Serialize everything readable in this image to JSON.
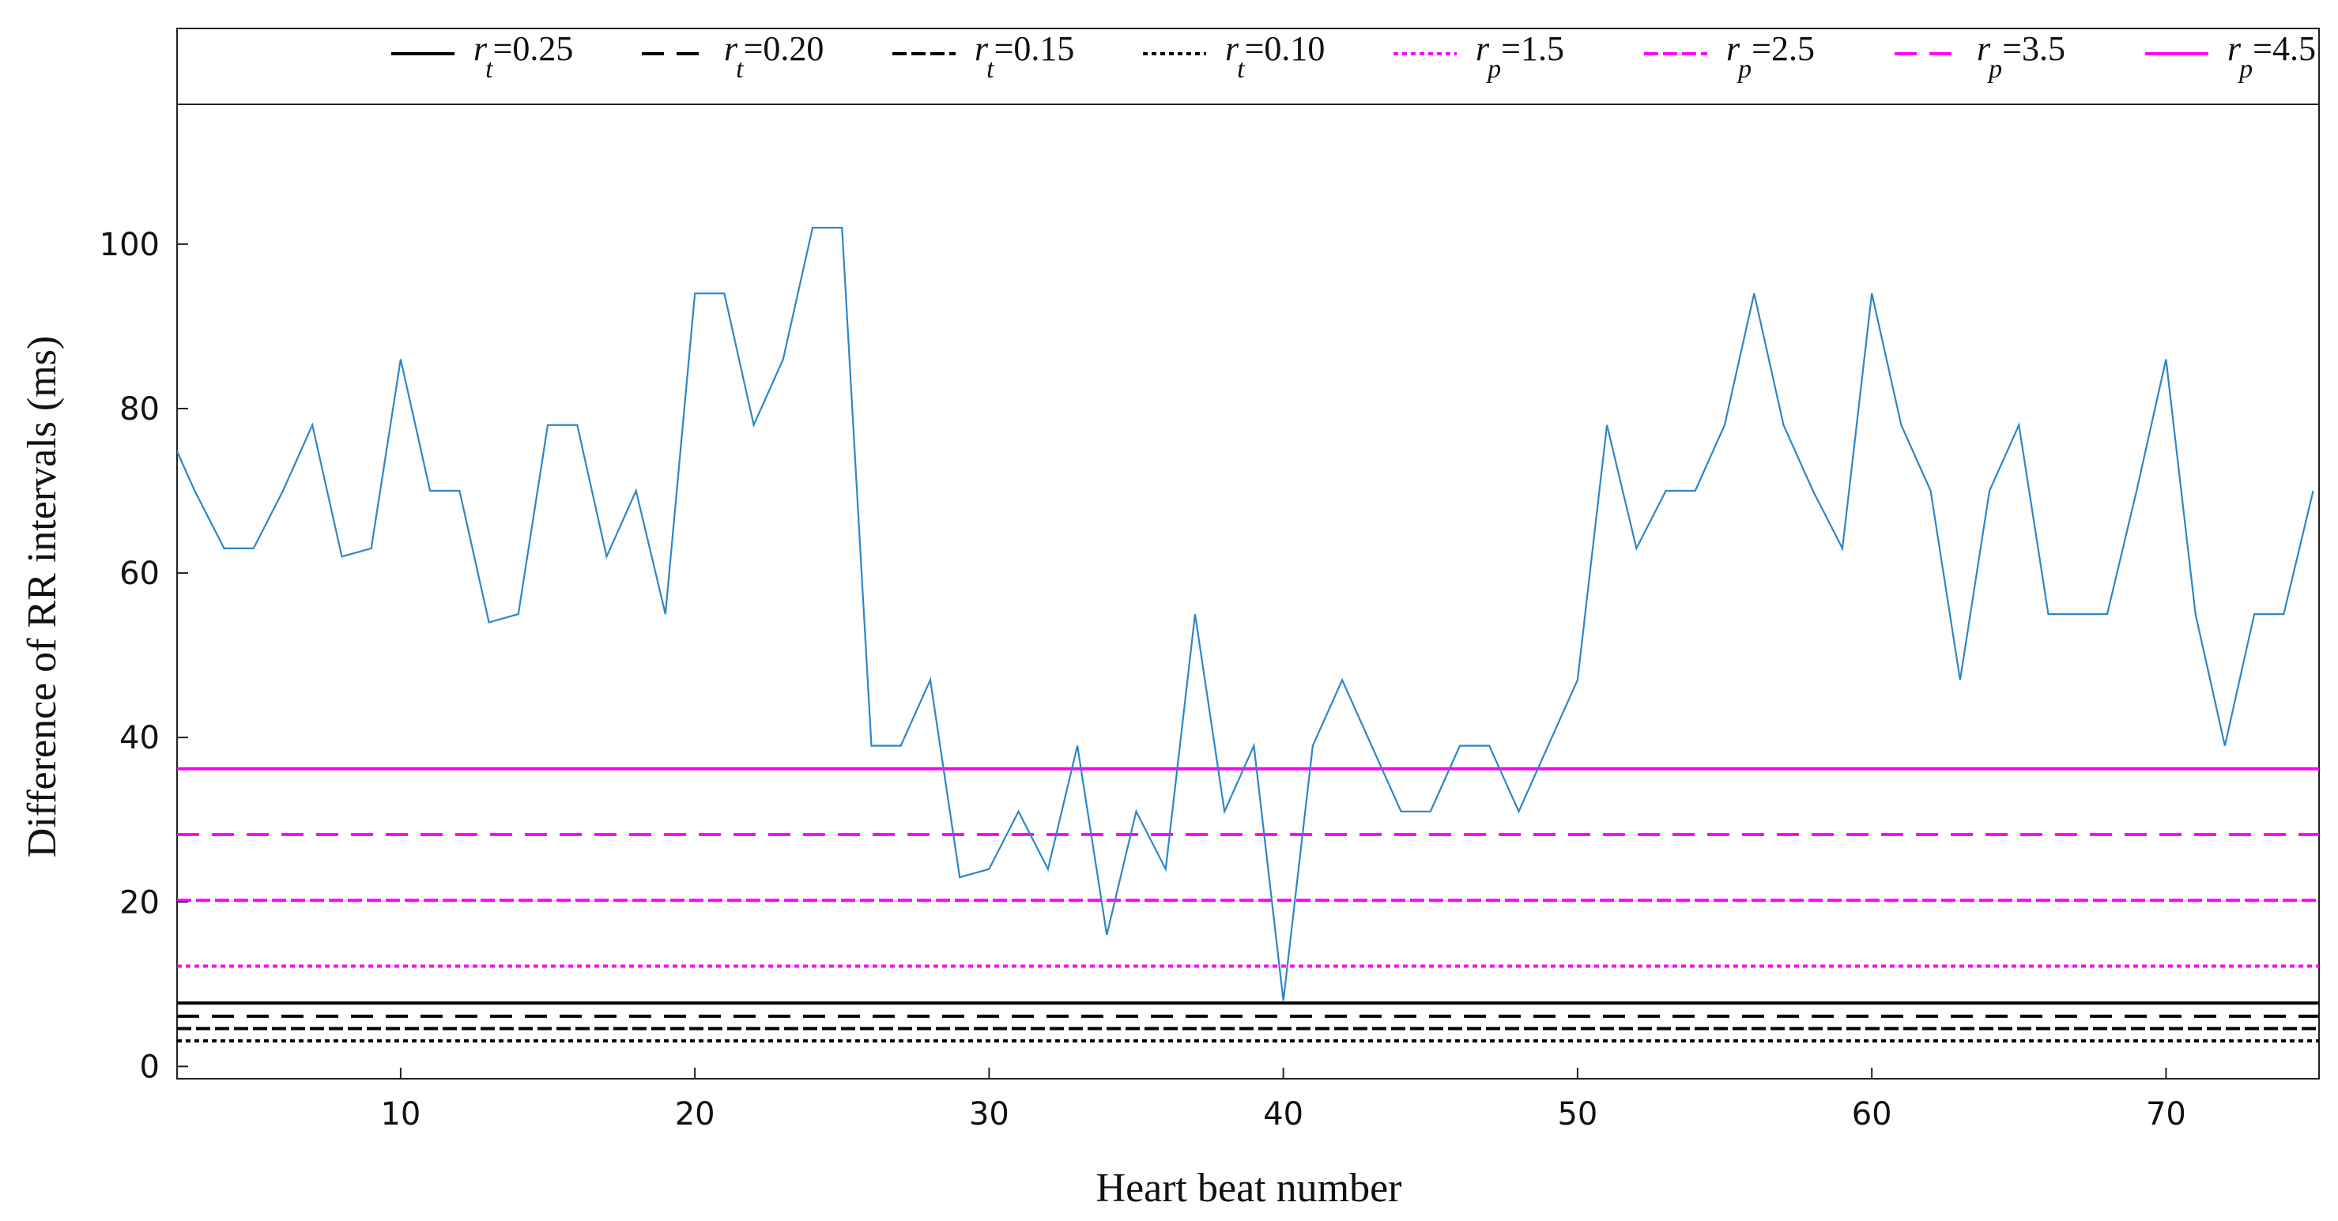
{
  "chart_data": {
    "type": "line",
    "title": "",
    "xlabel": "Heart beat number",
    "ylabel": "Difference of RR intervals (ms)",
    "xlim": [
      2.4,
      75.2
    ],
    "ylim": [
      -1.5,
      117
    ],
    "xticks": [
      10,
      20,
      30,
      40,
      50,
      60,
      70
    ],
    "yticks": [
      0,
      20,
      40,
      60,
      80,
      100
    ],
    "grid": false,
    "legend_position": "top (horizontal strip above plot)",
    "series": [
      {
        "color": "#2e86c8",
        "style": "solid",
        "x": [
          2,
          3,
          4,
          5,
          6,
          7,
          8,
          9,
          10,
          11,
          12,
          13,
          14,
          15,
          16,
          17,
          18,
          19,
          20,
          21,
          22,
          23,
          24,
          25,
          26,
          27,
          28,
          29,
          30,
          31,
          32,
          33,
          34,
          35,
          36,
          37,
          38,
          39,
          40,
          41,
          42,
          43,
          44,
          45,
          46,
          47,
          48,
          49,
          50,
          51,
          52,
          53,
          54,
          55,
          56,
          57,
          58,
          59,
          60,
          61,
          62,
          63,
          64,
          65,
          66,
          67,
          68,
          69,
          70,
          71,
          72,
          73,
          74,
          75
        ],
        "y": [
          78,
          70,
          63,
          63,
          70,
          78,
          62,
          63,
          86,
          70,
          70,
          54,
          55,
          78,
          78,
          62,
          70,
          55,
          94,
          94,
          78,
          86,
          102,
          102,
          39,
          39,
          47,
          23,
          24,
          31,
          24,
          39,
          16,
          31,
          24,
          55,
          31,
          39,
          8,
          39,
          47,
          39,
          31,
          31,
          39,
          39,
          31,
          39,
          47,
          78,
          63,
          70,
          70,
          78,
          94,
          78,
          70,
          63,
          94,
          78,
          70,
          47,
          70,
          78,
          55,
          55,
          55,
          70,
          86,
          55,
          39,
          55,
          55,
          70
        ]
      }
    ],
    "thresholds": [
      {
        "symbol": "r",
        "sub": "t",
        "value_text": "=0.25",
        "y": 7.7,
        "color": "#000000",
        "style": "solid"
      },
      {
        "symbol": "r",
        "sub": "t",
        "value_text": "=0.20",
        "y": 6.1,
        "color": "#000000",
        "style": "dashed"
      },
      {
        "symbol": "r",
        "sub": "t",
        "value_text": "=0.15",
        "y": 4.6,
        "color": "#000000",
        "style": "dashdot"
      },
      {
        "symbol": "r",
        "sub": "t",
        "value_text": "=0.10",
        "y": 3.1,
        "color": "#000000",
        "style": "dotted"
      },
      {
        "symbol": "r",
        "sub": "p",
        "value_text": "=1.5",
        "y": 12.2,
        "color": "#ff00ff",
        "style": "dotted"
      },
      {
        "symbol": "r",
        "sub": "p",
        "value_text": "=2.5",
        "y": 20.2,
        "color": "#ff00ff",
        "style": "dashdot"
      },
      {
        "symbol": "r",
        "sub": "p",
        "value_text": "=3.5",
        "y": 28.2,
        "color": "#ff00ff",
        "style": "dashed"
      },
      {
        "symbol": "r",
        "sub": "p",
        "value_text": "=4.5",
        "y": 36.2,
        "color": "#ff00ff",
        "style": "solid"
      }
    ]
  }
}
